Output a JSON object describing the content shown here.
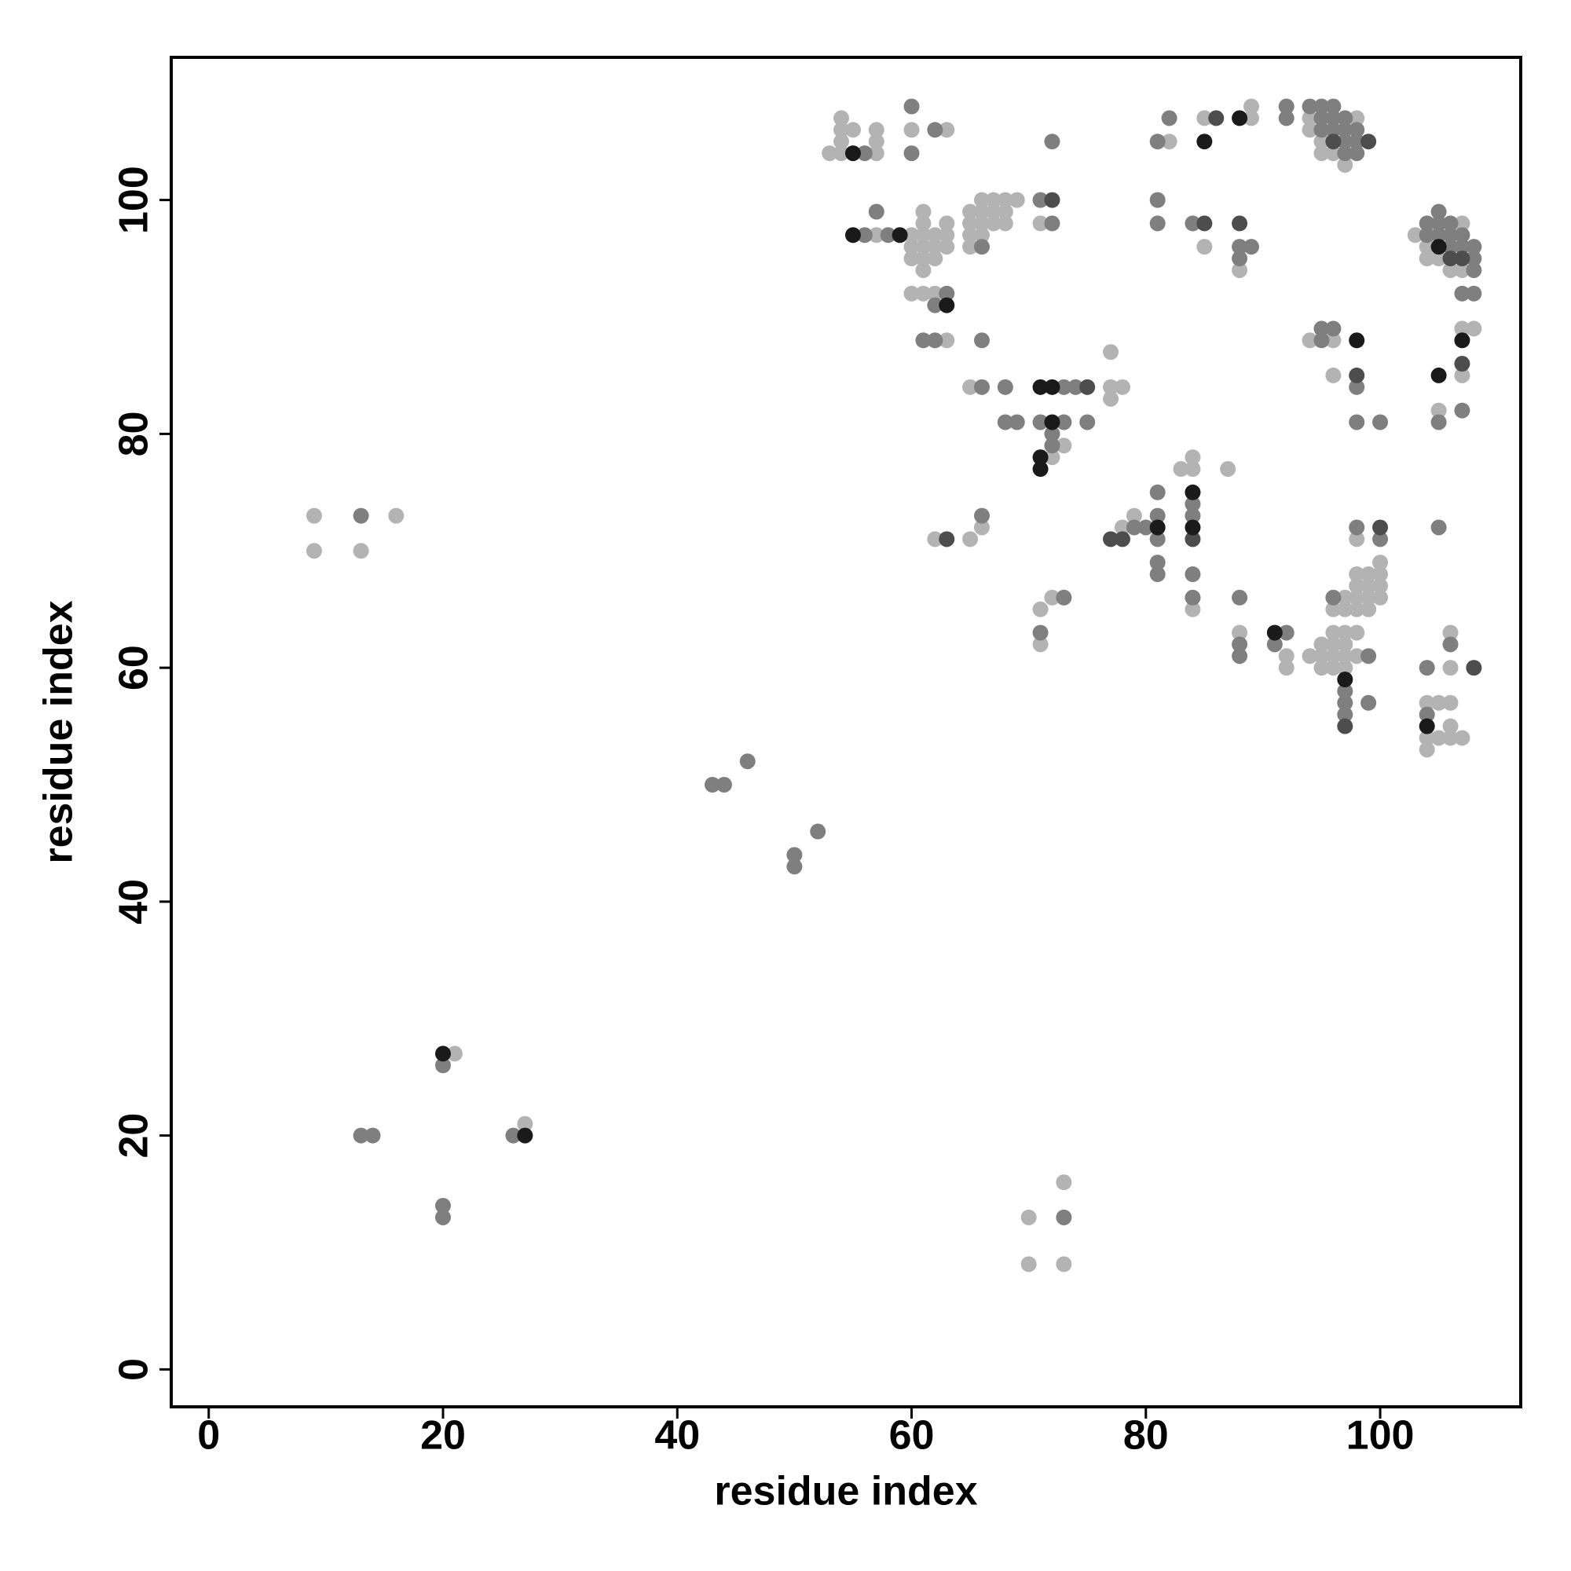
{
  "chart_data": {
    "type": "scatter",
    "xlabel": "residue index",
    "ylabel": "residue index",
    "xlim": [
      -3.2,
      112
    ],
    "ylim": [
      -3.2,
      112.2
    ],
    "xticks": [
      0,
      20,
      40,
      60,
      80,
      100
    ],
    "yticks": [
      0,
      20,
      40,
      60,
      80,
      100
    ],
    "series": [
      {
        "color": "#b3b3b3",
        "x": [
          9,
          9,
          13,
          16,
          21,
          27,
          70,
          70,
          73,
          73,
          53,
          54,
          54,
          54,
          54,
          55,
          57,
          57,
          57,
          60,
          63,
          57,
          60,
          60,
          60,
          61,
          61,
          61,
          61,
          61,
          61,
          62,
          62,
          62,
          63,
          63,
          63,
          60,
          61,
          62,
          63,
          65,
          65,
          65,
          65,
          66,
          66,
          66,
          66,
          67,
          67,
          67,
          68,
          68,
          68,
          69,
          65,
          71,
          73,
          72,
          77,
          77,
          78,
          77,
          62,
          65,
          66,
          71,
          72,
          71,
          78,
          79,
          83,
          84,
          84,
          84,
          87,
          88,
          82,
          85,
          85,
          89,
          89,
          88,
          94,
          94,
          95,
          95,
          96,
          97,
          98,
          94,
          96,
          96,
          92,
          92,
          94,
          95,
          95,
          95,
          96,
          96,
          96,
          96,
          96,
          97,
          97,
          97,
          97,
          97,
          97,
          98,
          98,
          98,
          98,
          98,
          98,
          98,
          99,
          99,
          99,
          99,
          100,
          100,
          100,
          100,
          103,
          104,
          104,
          105,
          106,
          107,
          107,
          107,
          108,
          107,
          105,
          106,
          106,
          104,
          105,
          106,
          106,
          104,
          105,
          106,
          107,
          104
        ],
        "y": [
          73,
          70,
          70,
          73,
          27,
          21,
          13,
          9,
          16,
          9,
          104,
          107,
          106,
          105,
          104,
          106,
          106,
          105,
          104,
          106,
          106,
          97,
          97,
          96,
          95,
          99,
          98,
          97,
          96,
          95,
          94,
          97,
          96,
          95,
          98,
          97,
          96,
          92,
          92,
          92,
          88,
          99,
          98,
          97,
          96,
          100,
          99,
          98,
          97,
          100,
          99,
          98,
          100,
          99,
          98,
          100,
          84,
          98,
          79,
          78,
          87,
          84,
          84,
          83,
          71,
          71,
          72,
          65,
          66,
          62,
          72,
          73,
          77,
          78,
          77,
          65,
          77,
          63,
          105,
          96,
          107,
          108,
          107,
          94,
          107,
          106,
          105,
          104,
          104,
          103,
          107,
          88,
          88,
          85,
          61,
          60,
          61,
          62,
          61,
          60,
          65,
          63,
          62,
          61,
          60,
          66,
          65,
          63,
          62,
          61,
          60,
          68,
          67,
          66,
          65,
          63,
          61,
          71,
          68,
          67,
          66,
          65,
          69,
          68,
          67,
          66,
          97,
          96,
          95,
          95,
          94,
          98,
          94,
          89,
          89,
          85,
          82,
          63,
          60,
          57,
          57,
          57,
          55,
          54,
          54,
          54,
          54,
          53
        ]
      },
      {
        "color": "#7f7f7f",
        "x": [
          13,
          20,
          13,
          14,
          26,
          20,
          20,
          43,
          44,
          46,
          50,
          50,
          52,
          73,
          56,
          60,
          60,
          62,
          56,
          58,
          57,
          63,
          62,
          61,
          62,
          66,
          66,
          66,
          68,
          68,
          69,
          71,
          72,
          72,
          73,
          74,
          71,
          73,
          75,
          72,
          72,
          66,
          73,
          71,
          79,
          80,
          81,
          81,
          81,
          81,
          81,
          84,
          84,
          84,
          84,
          88,
          88,
          88,
          81,
          82,
          81,
          81,
          84,
          88,
          89,
          88,
          92,
          92,
          94,
          95,
          95,
          95,
          96,
          96,
          96,
          97,
          97,
          97,
          97,
          98,
          98,
          98,
          95,
          95,
          96,
          98,
          98,
          100,
          91,
          92,
          96,
          97,
          97,
          97,
          98,
          99,
          99,
          100,
          104,
          104,
          105,
          105,
          105,
          106,
          106,
          106,
          107,
          107,
          108,
          108,
          108,
          107,
          108,
          105,
          107,
          105,
          104,
          106,
          104
        ],
        "y": [
          73,
          26,
          20,
          20,
          20,
          14,
          13,
          50,
          50,
          52,
          44,
          43,
          46,
          13,
          104,
          108,
          104,
          106,
          97,
          97,
          99,
          92,
          91,
          88,
          88,
          96,
          88,
          84,
          84,
          81,
          81,
          100,
          98,
          105,
          84,
          84,
          81,
          81,
          81,
          80,
          79,
          73,
          66,
          63,
          72,
          72,
          73,
          75,
          71,
          69,
          68,
          74,
          73,
          68,
          66,
          66,
          62,
          61,
          105,
          107,
          100,
          98,
          98,
          96,
          96,
          95,
          108,
          107,
          108,
          108,
          107,
          106,
          108,
          107,
          106,
          107,
          106,
          105,
          104,
          106,
          105,
          104,
          89,
          88,
          89,
          84,
          81,
          81,
          62,
          63,
          66,
          58,
          57,
          56,
          72,
          61,
          57,
          71,
          98,
          97,
          99,
          98,
          97,
          98,
          97,
          96,
          97,
          96,
          96,
          95,
          94,
          92,
          92,
          81,
          82,
          72,
          60,
          62,
          56
        ]
      },
      {
        "color": "#4d4d4d",
        "x": [
          72,
          75,
          63,
          77,
          78,
          84,
          85,
          86,
          88,
          96,
          99,
          98,
          97,
          100,
          106,
          107,
          107,
          108
        ],
        "y": [
          100,
          84,
          71,
          71,
          71,
          71,
          98,
          107,
          98,
          105,
          105,
          85,
          55,
          72,
          95,
          95,
          86,
          60
        ]
      },
      {
        "color": "#1a1a1a",
        "x": [
          20,
          27,
          55,
          55,
          59,
          63,
          71,
          72,
          72,
          71,
          71,
          81,
          84,
          84,
          85,
          88,
          98,
          91,
          97,
          105,
          107,
          105,
          104
        ],
        "y": [
          27,
          20,
          104,
          97,
          97,
          91,
          84,
          84,
          81,
          78,
          77,
          72,
          75,
          72,
          105,
          107,
          88,
          63,
          59,
          96,
          88,
          85,
          55
        ]
      }
    ]
  }
}
